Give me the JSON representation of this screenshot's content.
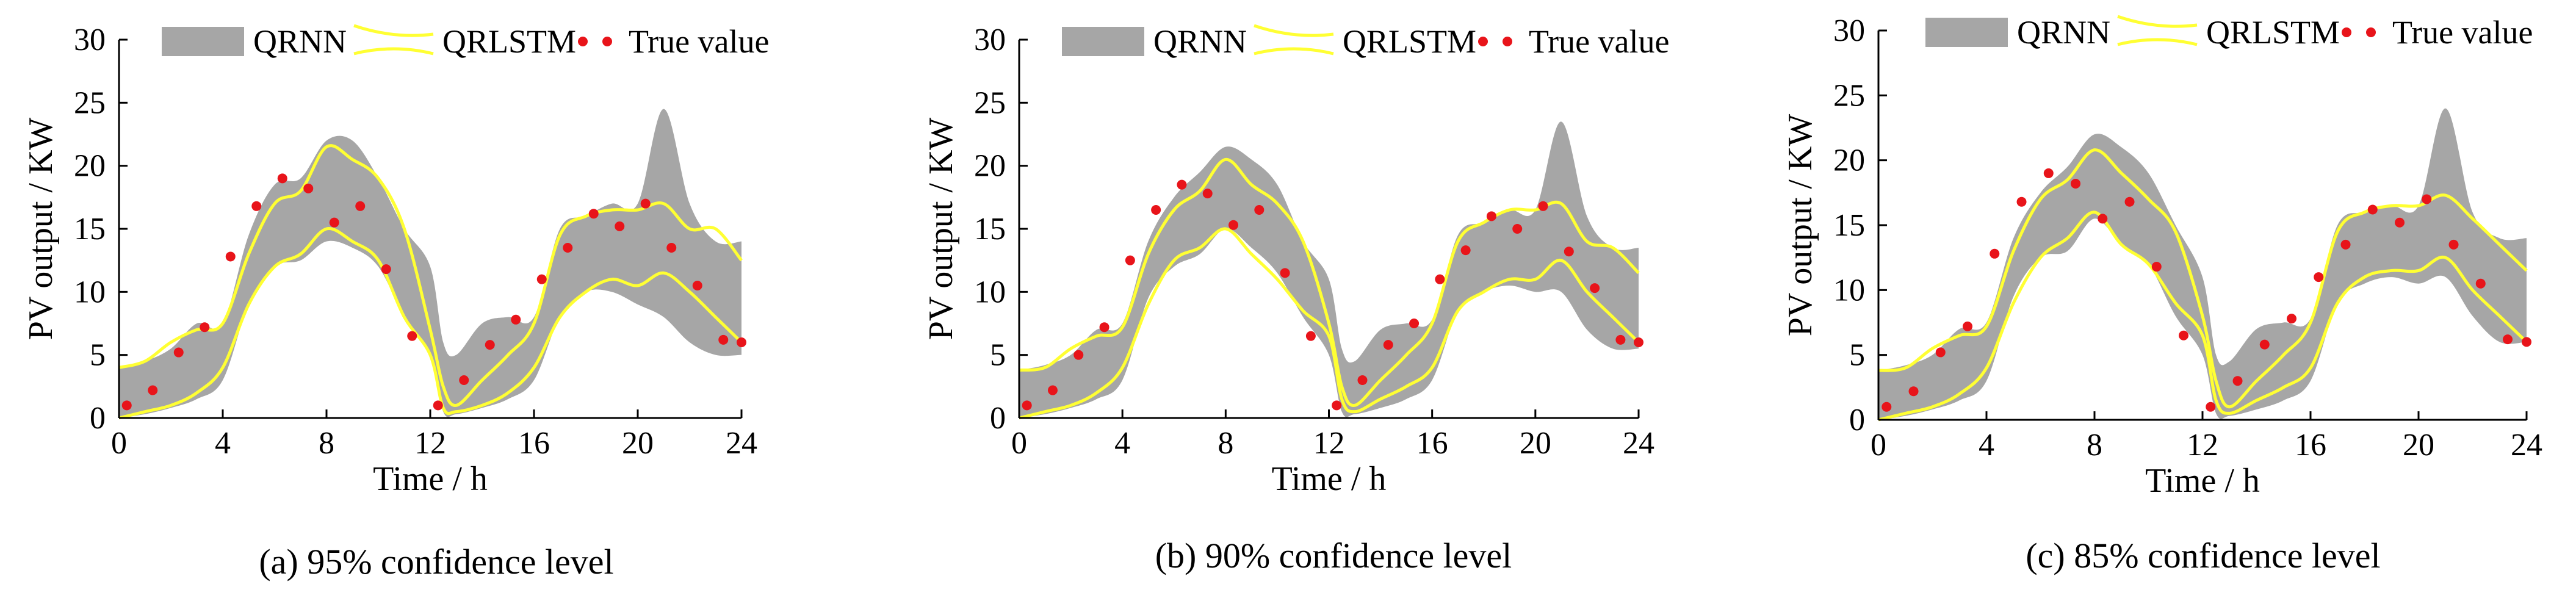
{
  "figure": {
    "legend": {
      "band_label": "QRNN",
      "line_label": "QRLSTM",
      "points_label": "True value"
    },
    "colors": {
      "band": "#a6a6a6",
      "line": "#ffff33",
      "points": "#e8141a",
      "axis": "#000000"
    }
  },
  "chart_data": [
    {
      "type": "area",
      "caption": "(a) 95% confidence level",
      "xlabel": "Time / h",
      "ylabel": "PV output / KW",
      "xlim": [
        0,
        24
      ],
      "ylim": [
        0,
        30
      ],
      "xticks": [
        0,
        4,
        8,
        12,
        16,
        20,
        24
      ],
      "yticks": [
        0,
        5,
        10,
        15,
        20,
        25,
        30
      ],
      "grid": false,
      "legend_position": "top",
      "series": [
        {
          "name": "QRNN",
          "kind": "band",
          "x": [
            0,
            1,
            2,
            3,
            4,
            5,
            6,
            7,
            8,
            9,
            10,
            11,
            12,
            12.5,
            13,
            14,
            15,
            16,
            17,
            18,
            19,
            20,
            21,
            22,
            23,
            24
          ],
          "lower": [
            0,
            0.3,
            0.8,
            1.5,
            3,
            9,
            12,
            12.5,
            14,
            13.5,
            12,
            8,
            5,
            0.5,
            0.3,
            0.8,
            1.5,
            3,
            8,
            10,
            10,
            9,
            8,
            6,
            5,
            5
          ],
          "upper": [
            4,
            4.5,
            5.5,
            7.5,
            7.5,
            14.5,
            18.5,
            19,
            22,
            22,
            19,
            15,
            12,
            6,
            5,
            7.5,
            8,
            8,
            15,
            16,
            17,
            17,
            24.5,
            17,
            14,
            14
          ]
        },
        {
          "name": "QRLSTM",
          "kind": "line_pair",
          "x": [
            0,
            1,
            2,
            3,
            4,
            5,
            6,
            7,
            8,
            9,
            10,
            11,
            12,
            12.5,
            13,
            14,
            15,
            16,
            17,
            18,
            19,
            20,
            21,
            22,
            23,
            24
          ],
          "lower": [
            0,
            0.5,
            1,
            2,
            4,
            9,
            12,
            13,
            15,
            14,
            12.5,
            8,
            5,
            0.8,
            0.5,
            1,
            2,
            4,
            8,
            10,
            11,
            10.5,
            11.5,
            10,
            8,
            6
          ],
          "upper": [
            4,
            4.5,
            6,
            7,
            7.5,
            13,
            17,
            18,
            21.5,
            20.5,
            19,
            15,
            7,
            2.5,
            1,
            3,
            5,
            7.5,
            14.5,
            16,
            16.5,
            16.5,
            17,
            15,
            15,
            12.5
          ]
        },
        {
          "name": "True value",
          "kind": "points",
          "x": [
            0.3,
            1.3,
            2.3,
            3.3,
            4.3,
            5.3,
            6.3,
            7.3,
            8.3,
            9.3,
            10.3,
            11.3,
            12.3,
            13.3,
            14.3,
            15.3,
            16.3,
            17.3,
            18.3,
            19.3,
            20.3,
            21.3,
            22.3,
            23.3,
            24
          ],
          "y": [
            1,
            2.2,
            5.2,
            7.2,
            12.8,
            16.8,
            19,
            18.2,
            15.5,
            16.8,
            11.8,
            6.5,
            1,
            3,
            5.8,
            7.8,
            11,
            13.5,
            16.2,
            15.2,
            17,
            13.5,
            10.5,
            6.2,
            6
          ]
        }
      ]
    },
    {
      "type": "area",
      "caption": "(b) 90% confidence level",
      "xlabel": "Time / h",
      "ylabel": "PV output / KW",
      "xlim": [
        0,
        24
      ],
      "ylim": [
        0,
        30
      ],
      "xticks": [
        0,
        4,
        8,
        12,
        16,
        20,
        24
      ],
      "yticks": [
        0,
        5,
        10,
        15,
        20,
        25,
        30
      ],
      "grid": false,
      "legend_position": "top",
      "series": [
        {
          "name": "QRNN",
          "kind": "band",
          "x": [
            0,
            1,
            2,
            3,
            4,
            5,
            6,
            7,
            8,
            9,
            10,
            11,
            12,
            12.5,
            13,
            14,
            15,
            16,
            17,
            18,
            19,
            20,
            21,
            22,
            23,
            24
          ],
          "lower": [
            0,
            0.3,
            0.8,
            1.5,
            3,
            9.5,
            12,
            13,
            15,
            13.5,
            11.5,
            8,
            5,
            0.5,
            0.3,
            0.8,
            1.5,
            3,
            8.5,
            10,
            10.5,
            10,
            10,
            7,
            5.5,
            5.5
          ],
          "upper": [
            3.8,
            4.2,
            5,
            7,
            7.5,
            14,
            17.5,
            19.5,
            21.5,
            20.5,
            18.5,
            14,
            11,
            5.5,
            4.5,
            7,
            7.5,
            7.8,
            14.5,
            15.5,
            16.5,
            16.5,
            23.5,
            16,
            13.5,
            13.5
          ]
        },
        {
          "name": "QRLSTM",
          "kind": "line_pair",
          "x": [
            0,
            1,
            2,
            3,
            4,
            5,
            6,
            7,
            8,
            9,
            10,
            11,
            12,
            12.5,
            13,
            14,
            15,
            16,
            17,
            18,
            19,
            20,
            21,
            22,
            23,
            24
          ],
          "lower": [
            0,
            0.5,
            1,
            2,
            4,
            9,
            12.5,
            13.5,
            15,
            13,
            11,
            8.5,
            6.5,
            1.5,
            0.5,
            1.5,
            2.5,
            4,
            8.5,
            10,
            11,
            11,
            12.5,
            10,
            8,
            6
          ],
          "upper": [
            3.8,
            4,
            5.5,
            6.5,
            7.2,
            13,
            16.5,
            18,
            20.5,
            18.5,
            17,
            14,
            7.5,
            2.5,
            1,
            3,
            5,
            7.5,
            14,
            15.5,
            16.5,
            16.5,
            17,
            14,
            13.5,
            11.5
          ]
        },
        {
          "name": "True value",
          "kind": "points",
          "x": [
            0.3,
            1.3,
            2.3,
            3.3,
            4.3,
            5.3,
            6.3,
            7.3,
            8.3,
            9.3,
            10.3,
            11.3,
            12.3,
            13.3,
            14.3,
            15.3,
            16.3,
            17.3,
            18.3,
            19.3,
            20.3,
            21.3,
            22.3,
            23.3,
            24
          ],
          "y": [
            1,
            2.2,
            5,
            7.2,
            12.5,
            16.5,
            18.5,
            17.8,
            15.3,
            16.5,
            11.5,
            6.5,
            1,
            3,
            5.8,
            7.5,
            11,
            13.3,
            16,
            15,
            16.8,
            13.2,
            10.3,
            6.2,
            6
          ]
        }
      ]
    },
    {
      "type": "area",
      "caption": "(c) 85% confidence level",
      "xlabel": "Time / h",
      "ylabel": "PV output / KW",
      "xlim": [
        0,
        24
      ],
      "ylim": [
        0,
        30
      ],
      "xticks": [
        0,
        4,
        8,
        12,
        16,
        20,
        24
      ],
      "yticks": [
        0,
        5,
        10,
        15,
        20,
        25,
        30
      ],
      "grid": false,
      "legend_position": "top",
      "series": [
        {
          "name": "QRNN",
          "kind": "band",
          "x": [
            0,
            1,
            2,
            3,
            4,
            5,
            6,
            7,
            8,
            9,
            10,
            11,
            12,
            12.5,
            13,
            14,
            15,
            16,
            17,
            18,
            19,
            20,
            21,
            22,
            23,
            24
          ],
          "lower": [
            0,
            0.3,
            0.8,
            1.5,
            3,
            9.5,
            12.5,
            13,
            15.5,
            13.5,
            12,
            8,
            5,
            0.5,
            0.3,
            0.8,
            1.5,
            3,
            9,
            10.5,
            11,
            10.5,
            11,
            8,
            6,
            6
          ],
          "upper": [
            3.8,
            4.2,
            5,
            7,
            7.5,
            14,
            17.5,
            19.5,
            22,
            21,
            19,
            15,
            11,
            5,
            4.5,
            7,
            7.5,
            7.8,
            15,
            16,
            16.5,
            16.5,
            24,
            16,
            14,
            14
          ]
        },
        {
          "name": "QRLSTM",
          "kind": "line_pair",
          "x": [
            0,
            1,
            2,
            3,
            4,
            5,
            6,
            7,
            8,
            9,
            10,
            11,
            12,
            12.5,
            13,
            14,
            15,
            16,
            17,
            18,
            19,
            20,
            21,
            22,
            23,
            24
          ],
          "lower": [
            0,
            0.5,
            1,
            2,
            4,
            9,
            12.5,
            14,
            16,
            13.5,
            12,
            9,
            6.5,
            1.5,
            0.5,
            1.5,
            2.5,
            4,
            9,
            11,
            11.5,
            11.5,
            12.5,
            10,
            8,
            6
          ],
          "upper": [
            3.8,
            4,
            5.5,
            6.5,
            7.2,
            13,
            17,
            18.5,
            20.8,
            19,
            17,
            14.5,
            8,
            3,
            1,
            3,
            5,
            7.5,
            14.5,
            16,
            16.5,
            16.5,
            17.3,
            15.5,
            13.5,
            11.5
          ]
        },
        {
          "name": "True value",
          "kind": "points",
          "x": [
            0.3,
            1.3,
            2.3,
            3.3,
            4.3,
            5.3,
            6.3,
            7.3,
            8.3,
            9.3,
            10.3,
            11.3,
            12.3,
            13.3,
            14.3,
            15.3,
            16.3,
            17.3,
            18.3,
            19.3,
            20.3,
            21.3,
            22.3,
            23.3,
            24
          ],
          "y": [
            1,
            2.2,
            5.2,
            7.2,
            12.8,
            16.8,
            19,
            18.2,
            15.5,
            16.8,
            11.8,
            6.5,
            1,
            3,
            5.8,
            7.8,
            11,
            13.5,
            16.2,
            15.2,
            17,
            13.5,
            10.5,
            6.2,
            6
          ]
        }
      ]
    }
  ]
}
